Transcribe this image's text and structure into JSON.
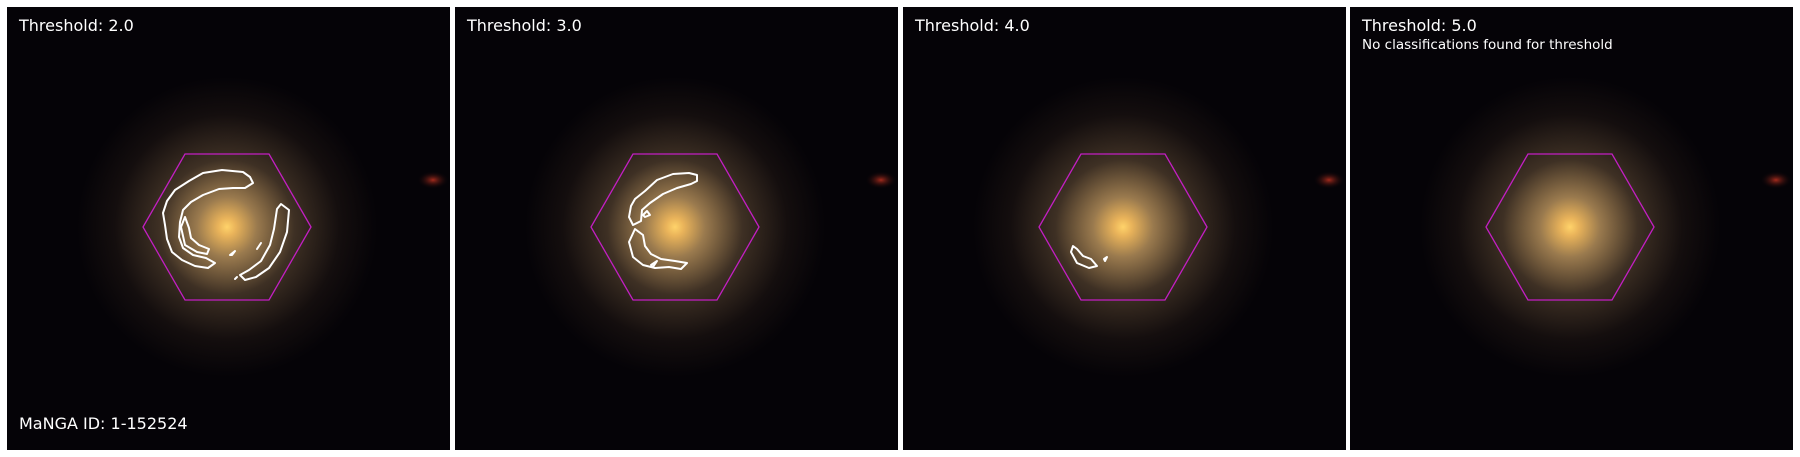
{
  "figure": {
    "panels": [
      {
        "threshold_label": "Threshold: 2.0",
        "note": "",
        "manga_id": "MaNGA ID: 1-152524",
        "contour_count": 6
      },
      {
        "threshold_label": "Threshold: 3.0",
        "note": "",
        "manga_id": "",
        "contour_count": 4
      },
      {
        "threshold_label": "Threshold: 4.0",
        "note": "",
        "manga_id": "",
        "contour_count": 2
      },
      {
        "threshold_label": "Threshold: 5.0",
        "note": "No classifications found for threshold",
        "manga_id": "",
        "contour_count": 0
      }
    ]
  },
  "colors": {
    "background": "#050307",
    "galaxy_core": "#f6c35a",
    "hexagon": "#c21fc2",
    "contour": "#ffffff",
    "text": "#ffffff"
  }
}
